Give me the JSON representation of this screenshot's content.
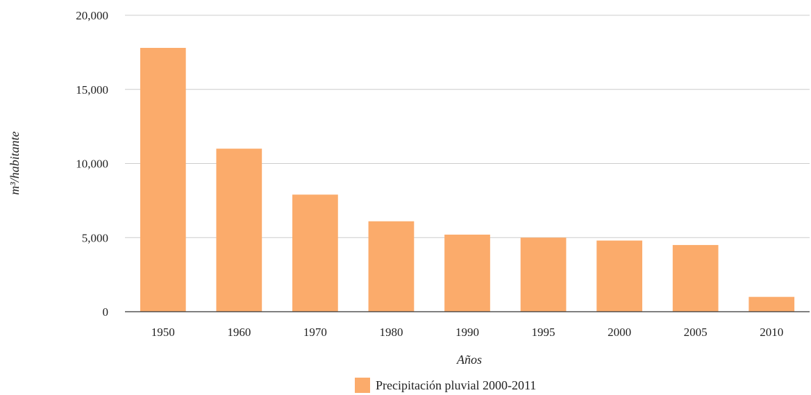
{
  "chart_data": {
    "type": "bar",
    "categories": [
      "1950",
      "1960",
      "1970",
      "1980",
      "1990",
      "1995",
      "2000",
      "2005",
      "2010"
    ],
    "series": [
      {
        "name": "Precipitación pluvial 2000-2011",
        "color": "#fbab6b",
        "values": [
          17800,
          11000,
          7900,
          6100,
          5200,
          5000,
          4800,
          4500,
          1000
        ]
      }
    ],
    "xlabel": "Años",
    "ylabel": "m³/habitante",
    "ylim": [
      0,
      20000
    ],
    "yticks": [
      0,
      5000,
      10000,
      15000,
      20000
    ],
    "ytick_labels": [
      "0",
      "5,000",
      "10,000",
      "15,000",
      "20,000"
    ],
    "grid": true,
    "legend_position": "bottom"
  }
}
